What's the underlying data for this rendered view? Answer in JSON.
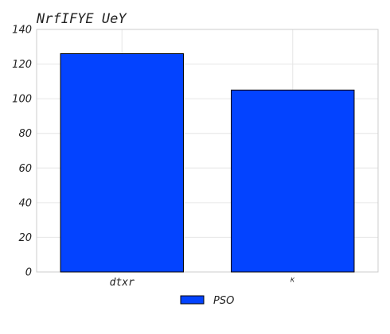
{
  "chart_data": {
    "type": "bar",
    "title": "NrfIFYE UeY",
    "categories": [
      "dtxr",
      "ᴷ"
    ],
    "series": [
      {
        "name": "PSO",
        "values": [
          126,
          105
        ],
        "color": "#0343ff"
      }
    ],
    "ylim": [
      0,
      140
    ],
    "yticks": [
      0,
      20,
      40,
      60,
      80,
      100,
      120,
      140
    ],
    "xlabel": "",
    "ylabel": "",
    "grid": true,
    "legend_position": "bottom-center"
  }
}
